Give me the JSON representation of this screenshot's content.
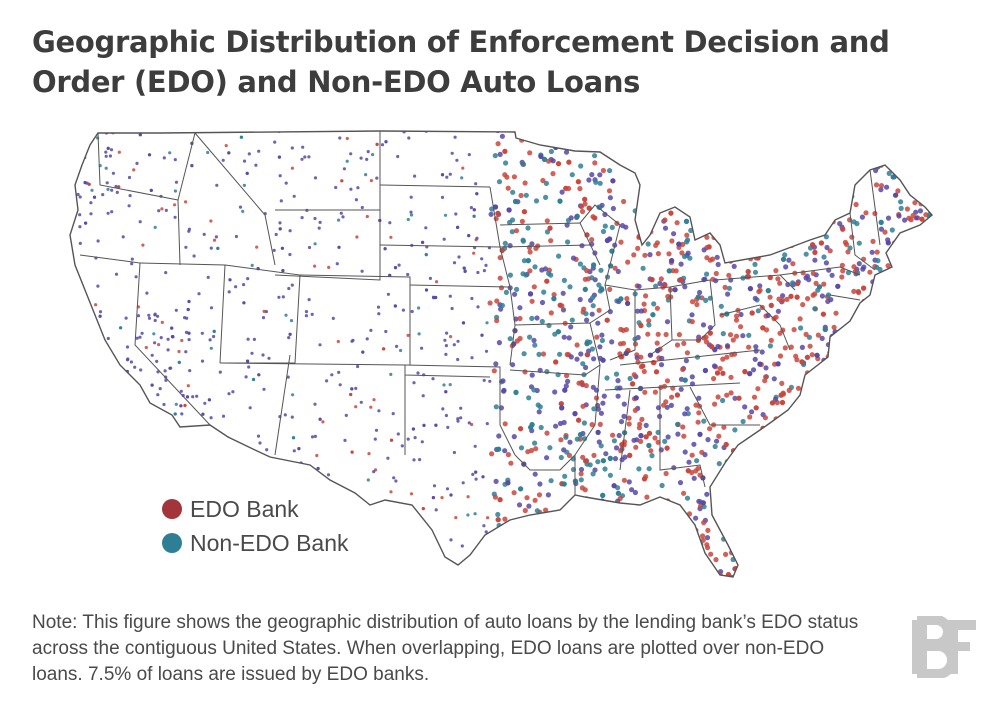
{
  "title": "Geographic Distribution of Enforcement Decision and Order (EDO) and Non-EDO Auto Loans",
  "legend": {
    "items": [
      {
        "label": "EDO Bank",
        "color": "#a3343a"
      },
      {
        "label": "Non-EDO Bank",
        "color": "#2f7f94"
      }
    ]
  },
  "map": {
    "region": "contiguous United States",
    "colors": {
      "edo": "#c9463c",
      "non_edo_purple": "#5848a6",
      "non_edo_teal": "#2f7f94",
      "border": "#555555"
    }
  },
  "note": "Note: This figure shows the geographic distribution of auto loans by the lending bank’s EDO status across the contiguous United States. When overlapping, EDO loans are plotted over non-EDO loans. 7.5% of loans are issued by EDO banks.",
  "logo": {
    "text": "BF",
    "color": "#c8c8c8"
  }
}
